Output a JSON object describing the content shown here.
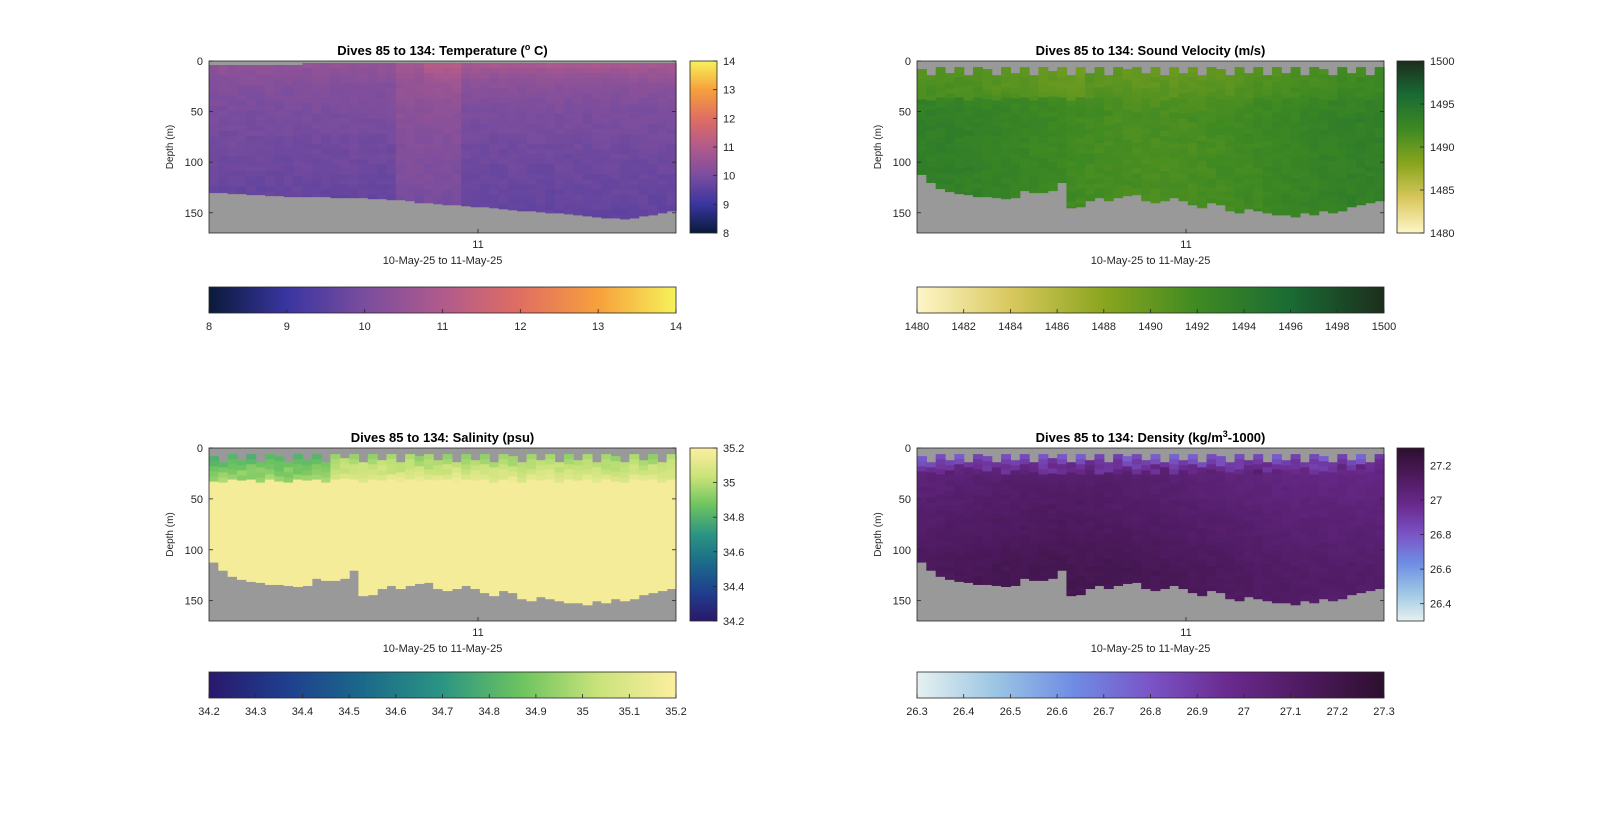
{
  "figure": {
    "background": "#ffffff",
    "nodata_color": "#999999"
  },
  "chart_data": [
    {
      "type": "heatmap",
      "title": "Dives 85 to 134: Temperature (",
      "title_sup": "o",
      "title_after": " C)",
      "xlabel": "10-May-25 to 11-May-25",
      "ylabel": "Depth (m)",
      "x_ticks": [
        "11"
      ],
      "y_ticks": [
        "0",
        "50",
        "100",
        "150"
      ],
      "ylim": [
        0,
        170
      ],
      "n_dives": 50,
      "dive_depths_m": [
        130,
        130,
        131,
        131,
        132,
        132,
        133,
        133,
        134,
        134,
        134,
        134,
        134,
        135,
        135,
        135,
        135,
        136,
        136,
        137,
        137,
        138,
        140,
        140,
        141,
        142,
        142,
        143,
        144,
        144,
        145,
        146,
        147,
        148,
        148,
        149,
        150,
        150,
        151,
        152,
        153,
        154,
        155,
        155,
        156,
        155,
        153,
        152,
        150,
        148
      ],
      "surface_gap_m": [
        4,
        4,
        4,
        4,
        4,
        4,
        4,
        4,
        4,
        4,
        2,
        2,
        2,
        2,
        2,
        2,
        2,
        2,
        2,
        2,
        2,
        2,
        2,
        2,
        2,
        2,
        2,
        2,
        2,
        2,
        2,
        2,
        2,
        2,
        2,
        2,
        2,
        2,
        2,
        2,
        2,
        2,
        2,
        2,
        2,
        2,
        2,
        2,
        2,
        2
      ],
      "colormap": "thermal",
      "colormap_stops": [
        "#0a1a3a",
        "#3a35a0",
        "#7a4d9e",
        "#b05a8c",
        "#e06e62",
        "#f7a03c",
        "#f6f25a"
      ],
      "clim": [
        8,
        14
      ],
      "colorbar_right": {
        "ticks": [
          "14",
          "13",
          "12",
          "11",
          "10",
          "9",
          "8"
        ]
      },
      "colorbar_bottom": {
        "ticks": [
          "8",
          "9",
          "10",
          "11",
          "12",
          "13",
          "14"
        ]
      }
    },
    {
      "type": "heatmap",
      "title": "Dives 85 to 134: Sound Velocity (m/s)",
      "xlabel": "10-May-25 to 11-May-25",
      "ylabel": "Depth (m)",
      "x_ticks": [
        "11"
      ],
      "y_ticks": [
        "0",
        "50",
        "100",
        "150"
      ],
      "ylim": [
        0,
        170
      ],
      "n_dives": 50,
      "dive_depths_m": [
        112,
        120,
        126,
        129,
        131,
        132,
        134,
        134,
        135,
        136,
        135,
        128,
        130,
        130,
        128,
        120,
        145,
        144,
        138,
        135,
        138,
        135,
        133,
        132,
        138,
        140,
        138,
        135,
        138,
        142,
        145,
        140,
        142,
        148,
        150,
        146,
        148,
        150,
        152,
        152,
        154,
        150,
        152,
        148,
        150,
        148,
        144,
        142,
        140,
        138
      ],
      "surface_gap_m": [
        8,
        14,
        6,
        12,
        6,
        14,
        6,
        8,
        14,
        6,
        12,
        6,
        14,
        6,
        10,
        6,
        14,
        6,
        12,
        6,
        14,
        6,
        8,
        6,
        12,
        6,
        14,
        6,
        12,
        6,
        14,
        6,
        8,
        14,
        6,
        12,
        6,
        14,
        6,
        12,
        6,
        14,
        6,
        8,
        14,
        6,
        12,
        6,
        14,
        6
      ],
      "colormap": "speed",
      "colormap_stops": [
        "#fef6c8",
        "#d9c85e",
        "#8aa51e",
        "#3f8a22",
        "#1a6b34",
        "#1c2e1c"
      ],
      "clim": [
        1480,
        1500
      ],
      "colorbar_right": {
        "ticks": [
          "1500",
          "1495",
          "1490",
          "1485",
          "1480"
        ]
      },
      "colorbar_bottom": {
        "ticks": [
          "1480",
          "1482",
          "1484",
          "1486",
          "1488",
          "1490",
          "1492",
          "1494",
          "1496",
          "1498",
          "1500"
        ]
      }
    },
    {
      "type": "heatmap",
      "title": "Dives 85 to 134: Salinity (psu)",
      "xlabel": "10-May-25 to 11-May-25",
      "ylabel": "Depth (m)",
      "x_ticks": [
        "11"
      ],
      "y_ticks": [
        "0",
        "50",
        "100",
        "150"
      ],
      "ylim": [
        0,
        170
      ],
      "n_dives": 50,
      "dive_depths_m": [
        112,
        120,
        126,
        129,
        131,
        132,
        134,
        134,
        135,
        136,
        135,
        128,
        130,
        130,
        128,
        120,
        145,
        144,
        138,
        135,
        138,
        135,
        133,
        132,
        138,
        140,
        138,
        135,
        138,
        142,
        145,
        140,
        142,
        148,
        150,
        146,
        148,
        150,
        152,
        152,
        154,
        150,
        152,
        148,
        150,
        148,
        144,
        142,
        140,
        138
      ],
      "surface_gap_m": [
        8,
        14,
        6,
        12,
        6,
        14,
        6,
        8,
        14,
        6,
        12,
        6,
        14,
        6,
        10,
        6,
        14,
        6,
        12,
        6,
        14,
        6,
        8,
        6,
        12,
        6,
        14,
        6,
        12,
        6,
        14,
        6,
        8,
        14,
        6,
        12,
        6,
        14,
        6,
        12,
        6,
        14,
        6,
        8,
        14,
        6,
        12,
        6,
        14,
        6
      ],
      "colormap": "haline",
      "colormap_stops": [
        "#2a186c",
        "#1f3f8e",
        "#1b6a8a",
        "#2b9583",
        "#6cc35f",
        "#c9e37a",
        "#fdeea0"
      ],
      "clim": [
        34.2,
        35.2
      ],
      "colorbar_right": {
        "ticks": [
          "35.2",
          "35",
          "34.8",
          "34.6",
          "34.4",
          "34.2"
        ]
      },
      "colorbar_bottom": {
        "ticks": [
          "34.2",
          "34.3",
          "34.4",
          "34.5",
          "34.6",
          "34.7",
          "34.8",
          "34.9",
          "35",
          "35.1",
          "35.2"
        ]
      }
    },
    {
      "type": "heatmap",
      "title": "Dives 85 to 134: Density (kg/m",
      "title_sup": "3",
      "title_after": "-1000)",
      "xlabel": "10-May-25 to 11-May-25",
      "ylabel": "Depth (m)",
      "x_ticks": [
        "11"
      ],
      "y_ticks": [
        "0",
        "50",
        "100",
        "150"
      ],
      "ylim": [
        0,
        170
      ],
      "n_dives": 50,
      "dive_depths_m": [
        112,
        120,
        126,
        129,
        131,
        132,
        134,
        134,
        135,
        136,
        135,
        128,
        130,
        130,
        128,
        120,
        145,
        144,
        138,
        135,
        138,
        135,
        133,
        132,
        138,
        140,
        138,
        135,
        138,
        142,
        145,
        140,
        142,
        148,
        150,
        146,
        148,
        150,
        152,
        152,
        154,
        150,
        152,
        148,
        150,
        148,
        144,
        142,
        140,
        138
      ],
      "surface_gap_m": [
        8,
        14,
        6,
        12,
        6,
        14,
        6,
        8,
        14,
        6,
        12,
        6,
        14,
        6,
        10,
        6,
        14,
        6,
        12,
        6,
        14,
        6,
        8,
        6,
        12,
        6,
        14,
        6,
        12,
        6,
        14,
        6,
        8,
        14,
        6,
        12,
        6,
        14,
        6,
        12,
        6,
        14,
        6,
        8,
        14,
        6,
        12,
        6,
        14,
        6
      ],
      "colormap": "dense",
      "colormap_stops": [
        "#e6f1f1",
        "#9cc6e4",
        "#6f8de4",
        "#7a54c6",
        "#6a2a8e",
        "#4d1a5e",
        "#2e0f2e"
      ],
      "clim": [
        26.3,
        27.3
      ],
      "colorbar_right": {
        "ticks": [
          "27.2",
          "27",
          "26.8",
          "26.6",
          "26.4"
        ]
      },
      "colorbar_bottom": {
        "ticks": [
          "26.3",
          "26.4",
          "26.5",
          "26.6",
          "26.7",
          "26.8",
          "26.9",
          "27",
          "27.1",
          "27.2",
          "27.3"
        ]
      }
    }
  ]
}
